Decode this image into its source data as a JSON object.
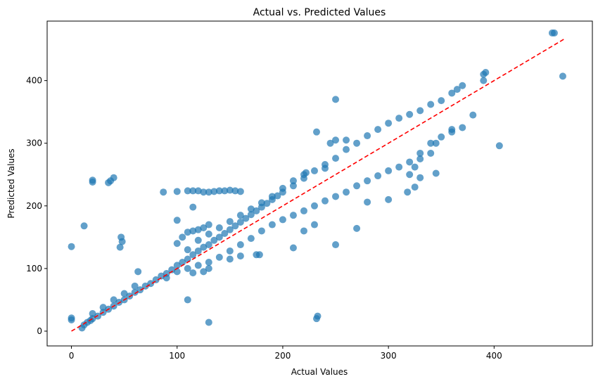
{
  "chart_data": {
    "type": "scatter",
    "title": "Actual vs. Predicted Values",
    "xlabel": "Actual Values",
    "ylabel": "Predicted Values",
    "xlim": [
      -23,
      493
    ],
    "ylim": [
      -23.6,
      495
    ],
    "xticks": [
      0,
      100,
      200,
      300,
      400
    ],
    "yticks": [
      0,
      100,
      200,
      300,
      400
    ],
    "grid": false,
    "point_color": "#1f77b4",
    "point_alpha": 0.7,
    "reference_line": {
      "style": "dashed",
      "color": "#ff0000",
      "from": [
        0,
        0
      ],
      "to": [
        466,
        466
      ]
    },
    "points": [
      [
        10,
        5
      ],
      [
        12,
        10
      ],
      [
        15,
        14
      ],
      [
        18,
        17
      ],
      [
        20,
        20
      ],
      [
        25,
        24
      ],
      [
        30,
        30
      ],
      [
        35,
        35
      ],
      [
        40,
        40
      ],
      [
        45,
        46
      ],
      [
        50,
        50
      ],
      [
        55,
        56
      ],
      [
        60,
        62
      ],
      [
        65,
        66
      ],
      [
        70,
        72
      ],
      [
        75,
        76
      ],
      [
        80,
        82
      ],
      [
        85,
        88
      ],
      [
        90,
        92
      ],
      [
        95,
        98
      ],
      [
        100,
        105
      ],
      [
        105,
        110
      ],
      [
        110,
        115
      ],
      [
        115,
        122
      ],
      [
        120,
        128
      ],
      [
        125,
        134
      ],
      [
        130,
        138
      ],
      [
        135,
        145
      ],
      [
        140,
        150
      ],
      [
        145,
        156
      ],
      [
        150,
        162
      ],
      [
        155,
        168
      ],
      [
        160,
        174
      ],
      [
        165,
        180
      ],
      [
        170,
        186
      ],
      [
        175,
        192
      ],
      [
        180,
        198
      ],
      [
        185,
        204
      ],
      [
        190,
        210
      ],
      [
        195,
        216
      ],
      [
        200,
        222
      ],
      [
        210,
        232
      ],
      [
        220,
        244
      ],
      [
        230,
        256
      ],
      [
        240,
        266
      ],
      [
        250,
        276
      ],
      [
        260,
        290
      ],
      [
        270,
        300
      ],
      [
        280,
        312
      ],
      [
        290,
        322
      ],
      [
        300,
        332
      ],
      [
        310,
        340
      ],
      [
        320,
        346
      ],
      [
        330,
        352
      ],
      [
        340,
        362
      ],
      [
        350,
        368
      ],
      [
        360,
        380
      ],
      [
        365,
        386
      ],
      [
        370,
        392
      ],
      [
        390,
        410
      ],
      [
        392,
        413
      ],
      [
        455,
        476
      ],
      [
        457,
        476
      ],
      [
        20,
        28
      ],
      [
        30,
        38
      ],
      [
        40,
        50
      ],
      [
        50,
        60
      ],
      [
        60,
        72
      ],
      [
        100,
        140
      ],
      [
        105,
        150
      ],
      [
        110,
        158
      ],
      [
        115,
        160
      ],
      [
        120,
        162
      ],
      [
        125,
        165
      ],
      [
        130,
        170
      ],
      [
        110,
        130
      ],
      [
        120,
        145
      ],
      [
        130,
        155
      ],
      [
        140,
        165
      ],
      [
        150,
        175
      ],
      [
        160,
        185
      ],
      [
        170,
        195
      ],
      [
        180,
        205
      ],
      [
        190,
        215
      ],
      [
        200,
        228
      ],
      [
        210,
        240
      ],
      [
        220,
        250
      ],
      [
        240,
        260
      ],
      [
        90,
        85
      ],
      [
        100,
        95
      ],
      [
        110,
        100
      ],
      [
        120,
        105
      ],
      [
        130,
        110
      ],
      [
        140,
        118
      ],
      [
        150,
        128
      ],
      [
        160,
        138
      ],
      [
        170,
        148
      ],
      [
        180,
        160
      ],
      [
        190,
        170
      ],
      [
        200,
        178
      ],
      [
        210,
        185
      ],
      [
        220,
        192
      ],
      [
        230,
        200
      ],
      [
        240,
        208
      ],
      [
        250,
        215
      ],
      [
        260,
        222
      ],
      [
        270,
        232
      ],
      [
        280,
        240
      ],
      [
        290,
        248
      ],
      [
        300,
        256
      ],
      [
        310,
        262
      ],
      [
        320,
        270
      ],
      [
        330,
        275
      ],
      [
        340,
        284
      ],
      [
        345,
        300
      ],
      [
        350,
        310
      ],
      [
        360,
        318
      ],
      [
        370,
        325
      ],
      [
        380,
        345
      ],
      [
        390,
        400
      ],
      [
        150,
        115
      ],
      [
        160,
        120
      ],
      [
        175,
        122
      ],
      [
        178,
        122
      ],
      [
        130,
        100
      ],
      [
        125,
        95
      ],
      [
        115,
        93
      ],
      [
        0,
        135
      ],
      [
        0,
        18
      ],
      [
        0,
        21
      ],
      [
        12,
        168
      ],
      [
        20,
        238
      ],
      [
        20,
        241
      ],
      [
        35,
        237
      ],
      [
        37,
        240
      ],
      [
        40,
        245
      ],
      [
        47,
        150
      ],
      [
        48,
        143
      ],
      [
        46,
        134
      ],
      [
        63,
        95
      ],
      [
        87,
        222
      ],
      [
        100,
        223
      ],
      [
        110,
        224
      ],
      [
        115,
        224
      ],
      [
        120,
        224
      ],
      [
        125,
        222
      ],
      [
        130,
        222
      ],
      [
        135,
        223
      ],
      [
        140,
        224
      ],
      [
        145,
        224
      ],
      [
        150,
        225
      ],
      [
        155,
        224
      ],
      [
        160,
        223
      ],
      [
        100,
        177
      ],
      [
        115,
        198
      ],
      [
        110,
        50
      ],
      [
        130,
        14
      ],
      [
        233,
        24
      ],
      [
        232,
        20
      ],
      [
        250,
        370
      ],
      [
        232,
        318
      ],
      [
        250,
        138
      ],
      [
        270,
        164
      ],
      [
        220,
        160
      ],
      [
        210,
        133
      ],
      [
        230,
        170
      ],
      [
        280,
        206
      ],
      [
        300,
        210
      ],
      [
        320,
        250
      ],
      [
        325,
        262
      ],
      [
        340,
        300
      ],
      [
        345,
        252
      ],
      [
        330,
        284
      ],
      [
        405,
        296
      ],
      [
        465,
        407
      ],
      [
        330,
        245
      ],
      [
        325,
        230
      ],
      [
        360,
        322
      ],
      [
        318,
        222
      ],
      [
        250,
        305
      ],
      [
        260,
        305
      ],
      [
        245,
        300
      ],
      [
        222,
        253
      ]
    ]
  }
}
